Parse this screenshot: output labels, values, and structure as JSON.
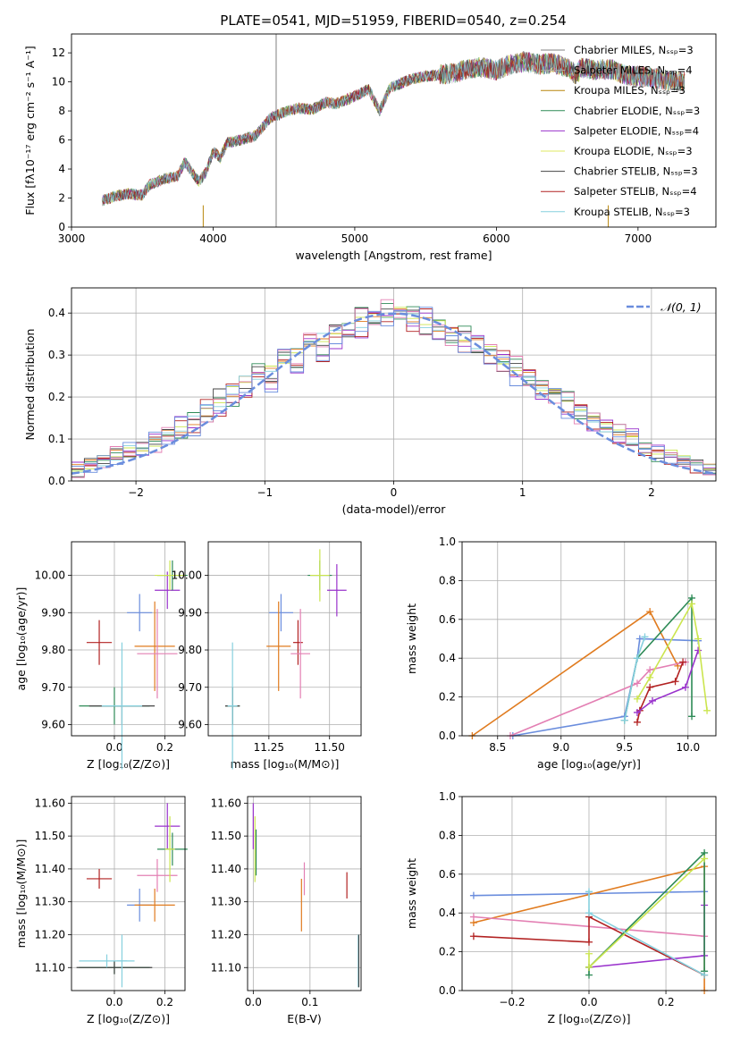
{
  "figure_title": "PLATE=0541, MJD=51959, FIBERID=0540, z=0.254",
  "chart_data": [
    {
      "id": "spectrum",
      "type": "line",
      "title": "PLATE=0541, MJD=51959, FIBERID=0540, z=0.254",
      "xlabel": "wavelength [Angstrom, rest frame]",
      "ylabel": "Flux [fλ10⁻¹⁷ erg cm⁻² s⁻¹ A⁻¹]",
      "xlim": [
        3000,
        7550
      ],
      "ylim": [
        0,
        13.3
      ],
      "xticks": [
        3000,
        4000,
        5000,
        6000,
        7000
      ],
      "yticks": [
        0,
        2,
        4,
        6,
        8,
        10,
        12
      ],
      "grid": false,
      "legend_position": "upper right",
      "spectrum_range": [
        3215,
        7330
      ],
      "spectrum_anchors": {
        "x": [
          3215,
          3300,
          3400,
          3500,
          3550,
          3650,
          3750,
          3800,
          3850,
          3900,
          3950,
          4000,
          4050,
          4100,
          4200,
          4300,
          4400,
          4500,
          4600,
          4700,
          4800,
          4861,
          4900,
          5000,
          5100,
          5175,
          5250,
          5400,
          5500,
          5600,
          5700,
          5800,
          5900,
          6000,
          6100,
          6200,
          6300,
          6400,
          6500,
          6563,
          6600,
          6700,
          6800,
          6900,
          7000,
          7100,
          7200,
          7330
        ],
        "y": [
          1.8,
          2.1,
          2.3,
          2.2,
          2.9,
          3.3,
          3.5,
          4.5,
          3.8,
          3.1,
          3.8,
          5.2,
          4.8,
          5.8,
          6.0,
          6.3,
          7.5,
          7.9,
          8.2,
          8.1,
          8.6,
          8.5,
          8.6,
          9.0,
          9.5,
          8.0,
          9.6,
          10.2,
          10.4,
          10.5,
          10.6,
          10.9,
          11.0,
          10.8,
          11.2,
          11.4,
          11.2,
          11.3,
          11.0,
          10.5,
          11.0,
          10.8,
          10.9,
          10.5,
          10.4,
          10.3,
          10.1,
          10.0
        ]
      },
      "series": [
        {
          "name": "Chabrier MILES, N_SSP=3",
          "color": "#808080"
        },
        {
          "name": "Salpeter MILES, N_SSP=4",
          "color": "#a9a9a9"
        },
        {
          "name": "Kroupa MILES, N_SSP=3",
          "color": "#b8860b"
        },
        {
          "name": "Chabrier ELODIE, N_SSP=3",
          "color": "#2e8b57"
        },
        {
          "name": "Salpeter ELODIE, N_SSP=4",
          "color": "#9932cc"
        },
        {
          "name": "Kroupa ELODIE, N_SSP=3",
          "color": "#dfe860"
        },
        {
          "name": "Chabrier STELIB, N_SSP=3",
          "color": "#444444"
        },
        {
          "name": "Salpeter STELIB, N_SSP=4",
          "color": "#b22222"
        },
        {
          "name": "Kroupa STELIB, N_SSP=3",
          "color": "#86d0de"
        }
      ]
    },
    {
      "id": "residuals",
      "type": "bar",
      "xlabel": "(data-model)/error",
      "ylabel": "Normed distribution",
      "xlim": [
        -2.5,
        2.5
      ],
      "ylim": [
        0,
        0.46
      ],
      "xticks": [
        -2,
        -1,
        0,
        1,
        2
      ],
      "yticks": [
        0.0,
        0.1,
        0.2,
        0.3,
        0.4
      ],
      "grid": true,
      "legend": "𝒩(0, 1)",
      "legend_position": "upper right",
      "bin_width": 0.1,
      "bin_left_edges": [
        -2.5,
        -2.4,
        -2.3,
        -2.2,
        -2.1,
        -2.0,
        -1.9,
        -1.8,
        -1.7,
        -1.6,
        -1.5,
        -1.4,
        -1.3,
        -1.2,
        -1.1,
        -1.0,
        -0.9,
        -0.8,
        -0.7,
        -0.6,
        -0.5,
        -0.4,
        -0.3,
        -0.2,
        -0.1,
        0.0,
        0.1,
        0.2,
        0.3,
        0.4,
        0.5,
        0.6,
        0.7,
        0.8,
        0.9,
        1.0,
        1.1,
        1.2,
        1.3,
        1.4,
        1.5,
        1.6,
        1.7,
        1.8,
        1.9,
        2.0,
        2.1,
        2.2,
        2.3,
        2.4
      ],
      "histograms": [
        [
          0.03,
          0.04,
          0.05,
          0.06,
          0.07,
          0.08,
          0.09,
          0.11,
          0.12,
          0.14,
          0.17,
          0.19,
          0.21,
          0.24,
          0.25,
          0.27,
          0.29,
          0.31,
          0.33,
          0.34,
          0.36,
          0.37,
          0.38,
          0.39,
          0.4,
          0.4,
          0.39,
          0.38,
          0.37,
          0.35,
          0.34,
          0.33,
          0.31,
          0.29,
          0.27,
          0.25,
          0.23,
          0.21,
          0.19,
          0.17,
          0.15,
          0.13,
          0.11,
          0.1,
          0.08,
          0.07,
          0.06,
          0.05,
          0.04,
          0.03
        ],
        [
          0.02,
          0.04,
          0.04,
          0.07,
          0.06,
          0.09,
          0.08,
          0.12,
          0.11,
          0.16,
          0.15,
          0.21,
          0.19,
          0.23,
          0.27,
          0.25,
          0.31,
          0.28,
          0.34,
          0.31,
          0.38,
          0.35,
          0.4,
          0.37,
          0.42,
          0.39,
          0.41,
          0.36,
          0.38,
          0.33,
          0.36,
          0.3,
          0.32,
          0.27,
          0.29,
          0.23,
          0.24,
          0.2,
          0.2,
          0.15,
          0.16,
          0.12,
          0.12,
          0.09,
          0.09,
          0.06,
          0.07,
          0.04,
          0.04,
          0.03
        ],
        [
          0.03,
          0.03,
          0.06,
          0.05,
          0.08,
          0.07,
          0.11,
          0.1,
          0.14,
          0.12,
          0.18,
          0.16,
          0.22,
          0.2,
          0.26,
          0.22,
          0.3,
          0.27,
          0.34,
          0.29,
          0.33,
          0.36,
          0.35,
          0.41,
          0.38,
          0.4,
          0.37,
          0.4,
          0.34,
          0.36,
          0.31,
          0.34,
          0.28,
          0.3,
          0.24,
          0.26,
          0.2,
          0.22,
          0.16,
          0.18,
          0.13,
          0.14,
          0.1,
          0.11,
          0.07,
          0.08,
          0.05,
          0.05,
          0.03,
          0.02
        ]
      ]
    },
    {
      "id": "age_vs_Z",
      "type": "scatter",
      "xlabel": "Z [log₁₀(Z/Z⊙)]",
      "ylabel": "age  [log₁₀(age/yr)]",
      "xlim": [
        -0.17,
        0.28
      ],
      "ylim": [
        9.57,
        10.09
      ],
      "xticks": [
        0.0,
        0.2
      ],
      "yticks": [
        9.6,
        9.7,
        9.8,
        9.9,
        10.0
      ],
      "grid": true,
      "points": [
        {
          "x": 0.0,
          "y": 9.65,
          "xerr": 0.14,
          "yerr": 0.05,
          "color": "#2e8b57"
        },
        {
          "x": 0.03,
          "y": 9.65,
          "xerr": 0.13,
          "yerr": 0.05,
          "color": "#444444"
        },
        {
          "x": 0.03,
          "y": 9.65,
          "xerr": 0.08,
          "yerr": 0.17,
          "color": "#86d0de"
        },
        {
          "x": -0.06,
          "y": 9.82,
          "xerr": 0.05,
          "yerr": 0.06,
          "color": "#b22222"
        },
        {
          "x": 0.1,
          "y": 9.9,
          "xerr": 0.05,
          "yerr": 0.05,
          "color": "#6a8ddd"
        },
        {
          "x": 0.16,
          "y": 9.81,
          "xerr": 0.08,
          "yerr": 0.12,
          "color": "#e07b1f"
        },
        {
          "x": 0.17,
          "y": 9.79,
          "xerr": 0.08,
          "yerr": 0.12,
          "color": "#e37fb3"
        },
        {
          "x": 0.21,
          "y": 9.96,
          "xerr": 0.05,
          "yerr": 0.05,
          "color": "#9932cc"
        },
        {
          "x": 0.23,
          "y": 10.0,
          "xerr": 0.06,
          "yerr": 0.04,
          "color": "#2e8b57"
        },
        {
          "x": 0.22,
          "y": 10.0,
          "xerr": 0.06,
          "yerr": 0.04,
          "color": "#cbe54e"
        }
      ]
    },
    {
      "id": "age_vs_mass",
      "type": "scatter",
      "xlabel": "mass [log₁₀(M/M⊙)]",
      "ylabel": "",
      "xlim": [
        11.0,
        11.63
      ],
      "ylim": [
        9.57,
        10.09
      ],
      "xticks": [
        11.25,
        11.5
      ],
      "yticks": [
        9.6,
        9.7,
        9.8,
        9.9,
        10.0
      ],
      "grid": true,
      "points": [
        {
          "x": 11.1,
          "y": 9.65,
          "xerr": 0.03,
          "yerr": 0.05,
          "color": "#2e8b57"
        },
        {
          "x": 11.1,
          "y": 9.65,
          "xerr": 0.03,
          "yerr": 0.05,
          "color": "#444444"
        },
        {
          "x": 11.1,
          "y": 9.65,
          "xerr": 0.02,
          "yerr": 0.17,
          "color": "#86d0de"
        },
        {
          "x": 11.3,
          "y": 9.9,
          "xerr": 0.05,
          "yerr": 0.05,
          "color": "#6a8ddd"
        },
        {
          "x": 11.29,
          "y": 9.81,
          "xerr": 0.05,
          "yerr": 0.12,
          "color": "#e07b1f"
        },
        {
          "x": 11.37,
          "y": 9.82,
          "xerr": 0.02,
          "yerr": 0.06,
          "color": "#b22222"
        },
        {
          "x": 11.38,
          "y": 9.79,
          "xerr": 0.04,
          "yerr": 0.12,
          "color": "#e37fb3"
        },
        {
          "x": 11.53,
          "y": 9.96,
          "xerr": 0.04,
          "yerr": 0.07,
          "color": "#9932cc"
        },
        {
          "x": 11.46,
          "y": 10.0,
          "xerr": 0.05,
          "yerr": 0.04,
          "color": "#2e8b57"
        },
        {
          "x": 11.46,
          "y": 10.0,
          "xerr": 0.04,
          "yerr": 0.07,
          "color": "#cbe54e"
        }
      ]
    },
    {
      "id": "massweight_vs_age",
      "type": "line",
      "xlabel": "age  [log₁₀(age/yr)]",
      "ylabel": "mass weight",
      "xlim": [
        8.22,
        10.22
      ],
      "ylim": [
        0,
        1.0
      ],
      "xticks": [
        8.5,
        9.0,
        9.5,
        10.0
      ],
      "yticks": [
        0.0,
        0.2,
        0.4,
        0.6,
        0.8,
        1.0
      ],
      "grid": true,
      "series": [
        {
          "color": "#e07b1f",
          "x": [
            8.3,
            9.7,
            9.92
          ],
          "y": [
            0.0,
            0.64,
            0.36
          ]
        },
        {
          "color": "#6a8ddd",
          "x": [
            8.62,
            9.5,
            9.6,
            9.62,
            10.08
          ],
          "y": [
            0.0,
            0.1,
            0.4,
            0.5,
            0.49
          ]
        },
        {
          "color": "#e37fb3",
          "x": [
            8.6,
            9.6,
            9.7,
            9.98
          ],
          "y": [
            0.0,
            0.27,
            0.34,
            0.38
          ]
        },
        {
          "color": "#2e8b57",
          "x": [
            9.5,
            9.6,
            10.03,
            10.03
          ],
          "y": [
            0.08,
            0.4,
            0.71,
            0.1
          ]
        },
        {
          "color": "#86d0de",
          "x": [
            9.5,
            9.6,
            9.66
          ],
          "y": [
            0.08,
            0.4,
            0.51
          ]
        },
        {
          "color": "#b22222",
          "x": [
            9.6,
            9.62,
            9.7,
            9.9,
            9.96
          ],
          "y": [
            0.07,
            0.13,
            0.25,
            0.28,
            0.38
          ]
        },
        {
          "color": "#9932cc",
          "x": [
            9.6,
            9.72,
            9.98,
            10.08
          ],
          "y": [
            0.12,
            0.18,
            0.25,
            0.44
          ]
        },
        {
          "color": "#cbe54e",
          "x": [
            9.6,
            9.7,
            10.03,
            10.08,
            10.15
          ],
          "y": [
            0.19,
            0.3,
            0.68,
            0.5,
            0.13
          ]
        }
      ]
    },
    {
      "id": "mass_vs_Z",
      "type": "scatter",
      "xlabel": "Z [log₁₀(Z/Z⊙)]",
      "ylabel": "mass [log₁₀(M/M⊙)]",
      "xlim": [
        -0.17,
        0.28
      ],
      "ylim": [
        11.03,
        11.62
      ],
      "xticks": [
        0.0,
        0.2
      ],
      "yticks": [
        11.1,
        11.2,
        11.3,
        11.4,
        11.5,
        11.6
      ],
      "grid": true,
      "points": [
        {
          "x": 0.0,
          "y": 11.1,
          "xerr": 0.14,
          "yerr": 0.02,
          "color": "#2e8b57"
        },
        {
          "x": 0.0,
          "y": 11.1,
          "xerr": 0.15,
          "yerr": 0.02,
          "color": "#444444"
        },
        {
          "x": -0.03,
          "y": 11.12,
          "xerr": 0.11,
          "yerr": 0.02,
          "color": "#86d0de"
        },
        {
          "x": 0.03,
          "y": 11.12,
          "xerr": 0.02,
          "yerr": 0.08,
          "color": "#86d0de"
        },
        {
          "x": -0.06,
          "y": 11.37,
          "xerr": 0.05,
          "yerr": 0.03,
          "color": "#b22222"
        },
        {
          "x": 0.1,
          "y": 11.29,
          "xerr": 0.05,
          "yerr": 0.05,
          "color": "#6a8ddd"
        },
        {
          "x": 0.16,
          "y": 11.29,
          "xerr": 0.08,
          "yerr": 0.05,
          "color": "#e07b1f"
        },
        {
          "x": 0.17,
          "y": 11.38,
          "xerr": 0.08,
          "yerr": 0.05,
          "color": "#e37fb3"
        },
        {
          "x": 0.21,
          "y": 11.53,
          "xerr": 0.05,
          "yerr": 0.07,
          "color": "#9932cc"
        },
        {
          "x": 0.23,
          "y": 11.46,
          "xerr": 0.06,
          "yerr": 0.05,
          "color": "#2e8b57"
        },
        {
          "x": 0.22,
          "y": 11.46,
          "xerr": 0.02,
          "yerr": 0.1,
          "color": "#cbe54e"
        }
      ]
    },
    {
      "id": "mass_vs_EBV",
      "type": "scatter",
      "xlabel": "E(B-V)",
      "ylabel": "",
      "xlim": [
        -0.01,
        0.19
      ],
      "ylim": [
        11.03,
        11.62
      ],
      "xticks": [
        0.0,
        0.1
      ],
      "yticks": [
        11.1,
        11.2,
        11.3,
        11.4,
        11.5,
        11.6
      ],
      "grid": true,
      "points": [
        {
          "x": 0.0,
          "y": 11.53,
          "xerr": 0,
          "yerr": 0.07,
          "color": "#9932cc"
        },
        {
          "x": 0.003,
          "y": 11.46,
          "xerr": 0,
          "yerr": 0.1,
          "color": "#cbe54e"
        },
        {
          "x": 0.005,
          "y": 11.45,
          "xerr": 0,
          "yerr": 0.07,
          "color": "#2e8b57"
        },
        {
          "x": 0.085,
          "y": 11.29,
          "xerr": 0,
          "yerr": 0.08,
          "color": "#e07b1f"
        },
        {
          "x": 0.09,
          "y": 11.37,
          "xerr": 0,
          "yerr": 0.05,
          "color": "#e37fb3"
        },
        {
          "x": 0.165,
          "y": 11.35,
          "xerr": 0,
          "yerr": 0.04,
          "color": "#b22222"
        },
        {
          "x": 0.185,
          "y": 11.12,
          "xerr": 0,
          "yerr": 0.08,
          "color": "#86d0de"
        },
        {
          "x": 0.186,
          "y": 11.12,
          "xerr": 0,
          "yerr": 0.08,
          "color": "#444444"
        }
      ]
    },
    {
      "id": "massweight_vs_Z",
      "type": "line",
      "xlabel": "Z [log₁₀(Z/Z⊙)]",
      "ylabel": "mass weight",
      "xlim": [
        -0.33,
        0.33
      ],
      "ylim": [
        0,
        1.0
      ],
      "xticks": [
        -0.2,
        0.0,
        0.2
      ],
      "yticks": [
        0.0,
        0.2,
        0.4,
        0.6,
        0.8,
        1.0
      ],
      "grid": true,
      "series": [
        {
          "color": "#6a8ddd",
          "x": [
            -0.3,
            0.0,
            0.3
          ],
          "y": [
            0.49,
            0.5,
            0.51
          ]
        },
        {
          "color": "#e07b1f",
          "x": [
            -0.3,
            0.3,
            0.3
          ],
          "y": [
            0.35,
            0.64,
            0.0
          ]
        },
        {
          "color": "#e37fb3",
          "x": [
            -0.3,
            0.3
          ],
          "y": [
            0.38,
            0.28
          ]
        },
        {
          "color": "#b22222",
          "x": [
            -0.3,
            0.0,
            0.0,
            0.3
          ],
          "y": [
            0.28,
            0.25,
            0.38,
            0.08
          ]
        },
        {
          "color": "#9932cc",
          "x": [
            0.0,
            0.3,
            0.3
          ],
          "y": [
            0.12,
            0.18,
            0.44
          ]
        },
        {
          "color": "#2e8b57",
          "x": [
            0.0,
            0.0,
            0.3,
            0.3
          ],
          "y": [
            0.08,
            0.12,
            0.71,
            0.1
          ]
        },
        {
          "color": "#cbe54e",
          "x": [
            0.0,
            0.0,
            0.3
          ],
          "y": [
            0.19,
            0.12,
            0.68
          ]
        },
        {
          "color": "#86d0de",
          "x": [
            0.0,
            0.0,
            0.3
          ],
          "y": [
            0.51,
            0.4,
            0.08
          ]
        }
      ]
    }
  ]
}
